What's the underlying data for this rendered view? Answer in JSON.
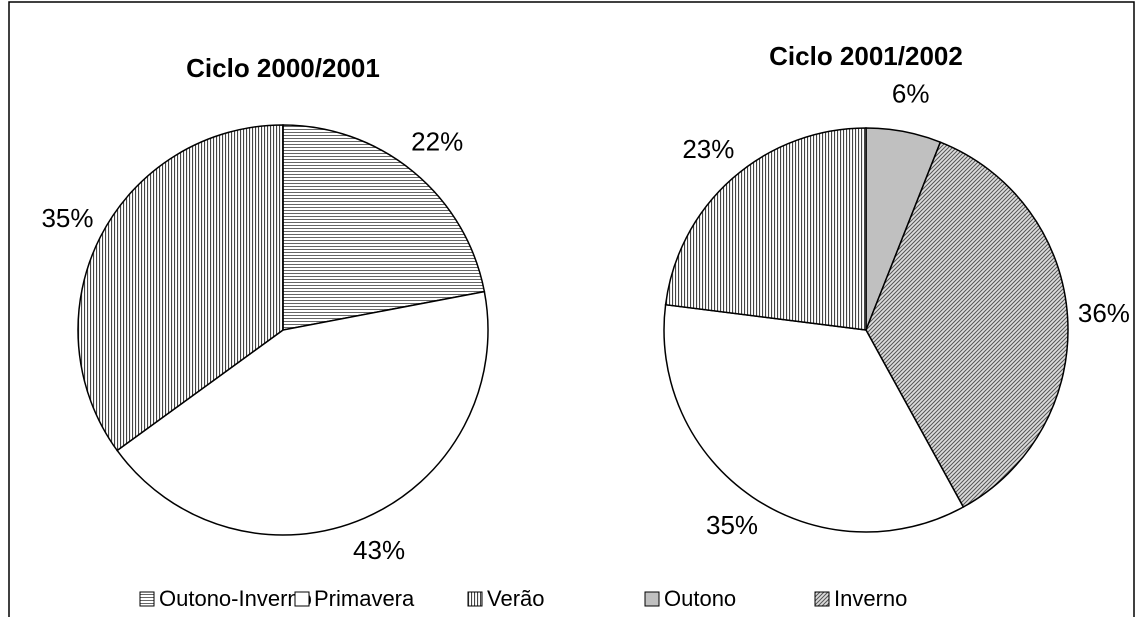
{
  "chart_data": [
    {
      "type": "pie",
      "title": "Ciclo 2000/2001",
      "categories": [
        "Outono-Inverno",
        "Primavera",
        "Verão"
      ],
      "values": [
        22,
        43,
        35
      ],
      "value_labels": [
        "22%",
        "43%",
        "35%"
      ],
      "colors": [
        "#ffffff",
        "#ffffff",
        "#ffffff"
      ],
      "patterns": [
        "horizontal",
        "none",
        "vertical"
      ]
    },
    {
      "type": "pie",
      "title": "Ciclo 2001/2002",
      "categories": [
        "Outono",
        "Inverno",
        "Primavera",
        "Verão"
      ],
      "values": [
        6,
        36,
        35,
        23
      ],
      "value_labels": [
        "6%",
        "36%",
        "35%",
        "23%"
      ],
      "colors": [
        "#c0c0c0",
        "#ffffff",
        "#ffffff",
        "#ffffff"
      ],
      "patterns": [
        "solid",
        "diagonal",
        "none",
        "vertical"
      ]
    }
  ]
}
